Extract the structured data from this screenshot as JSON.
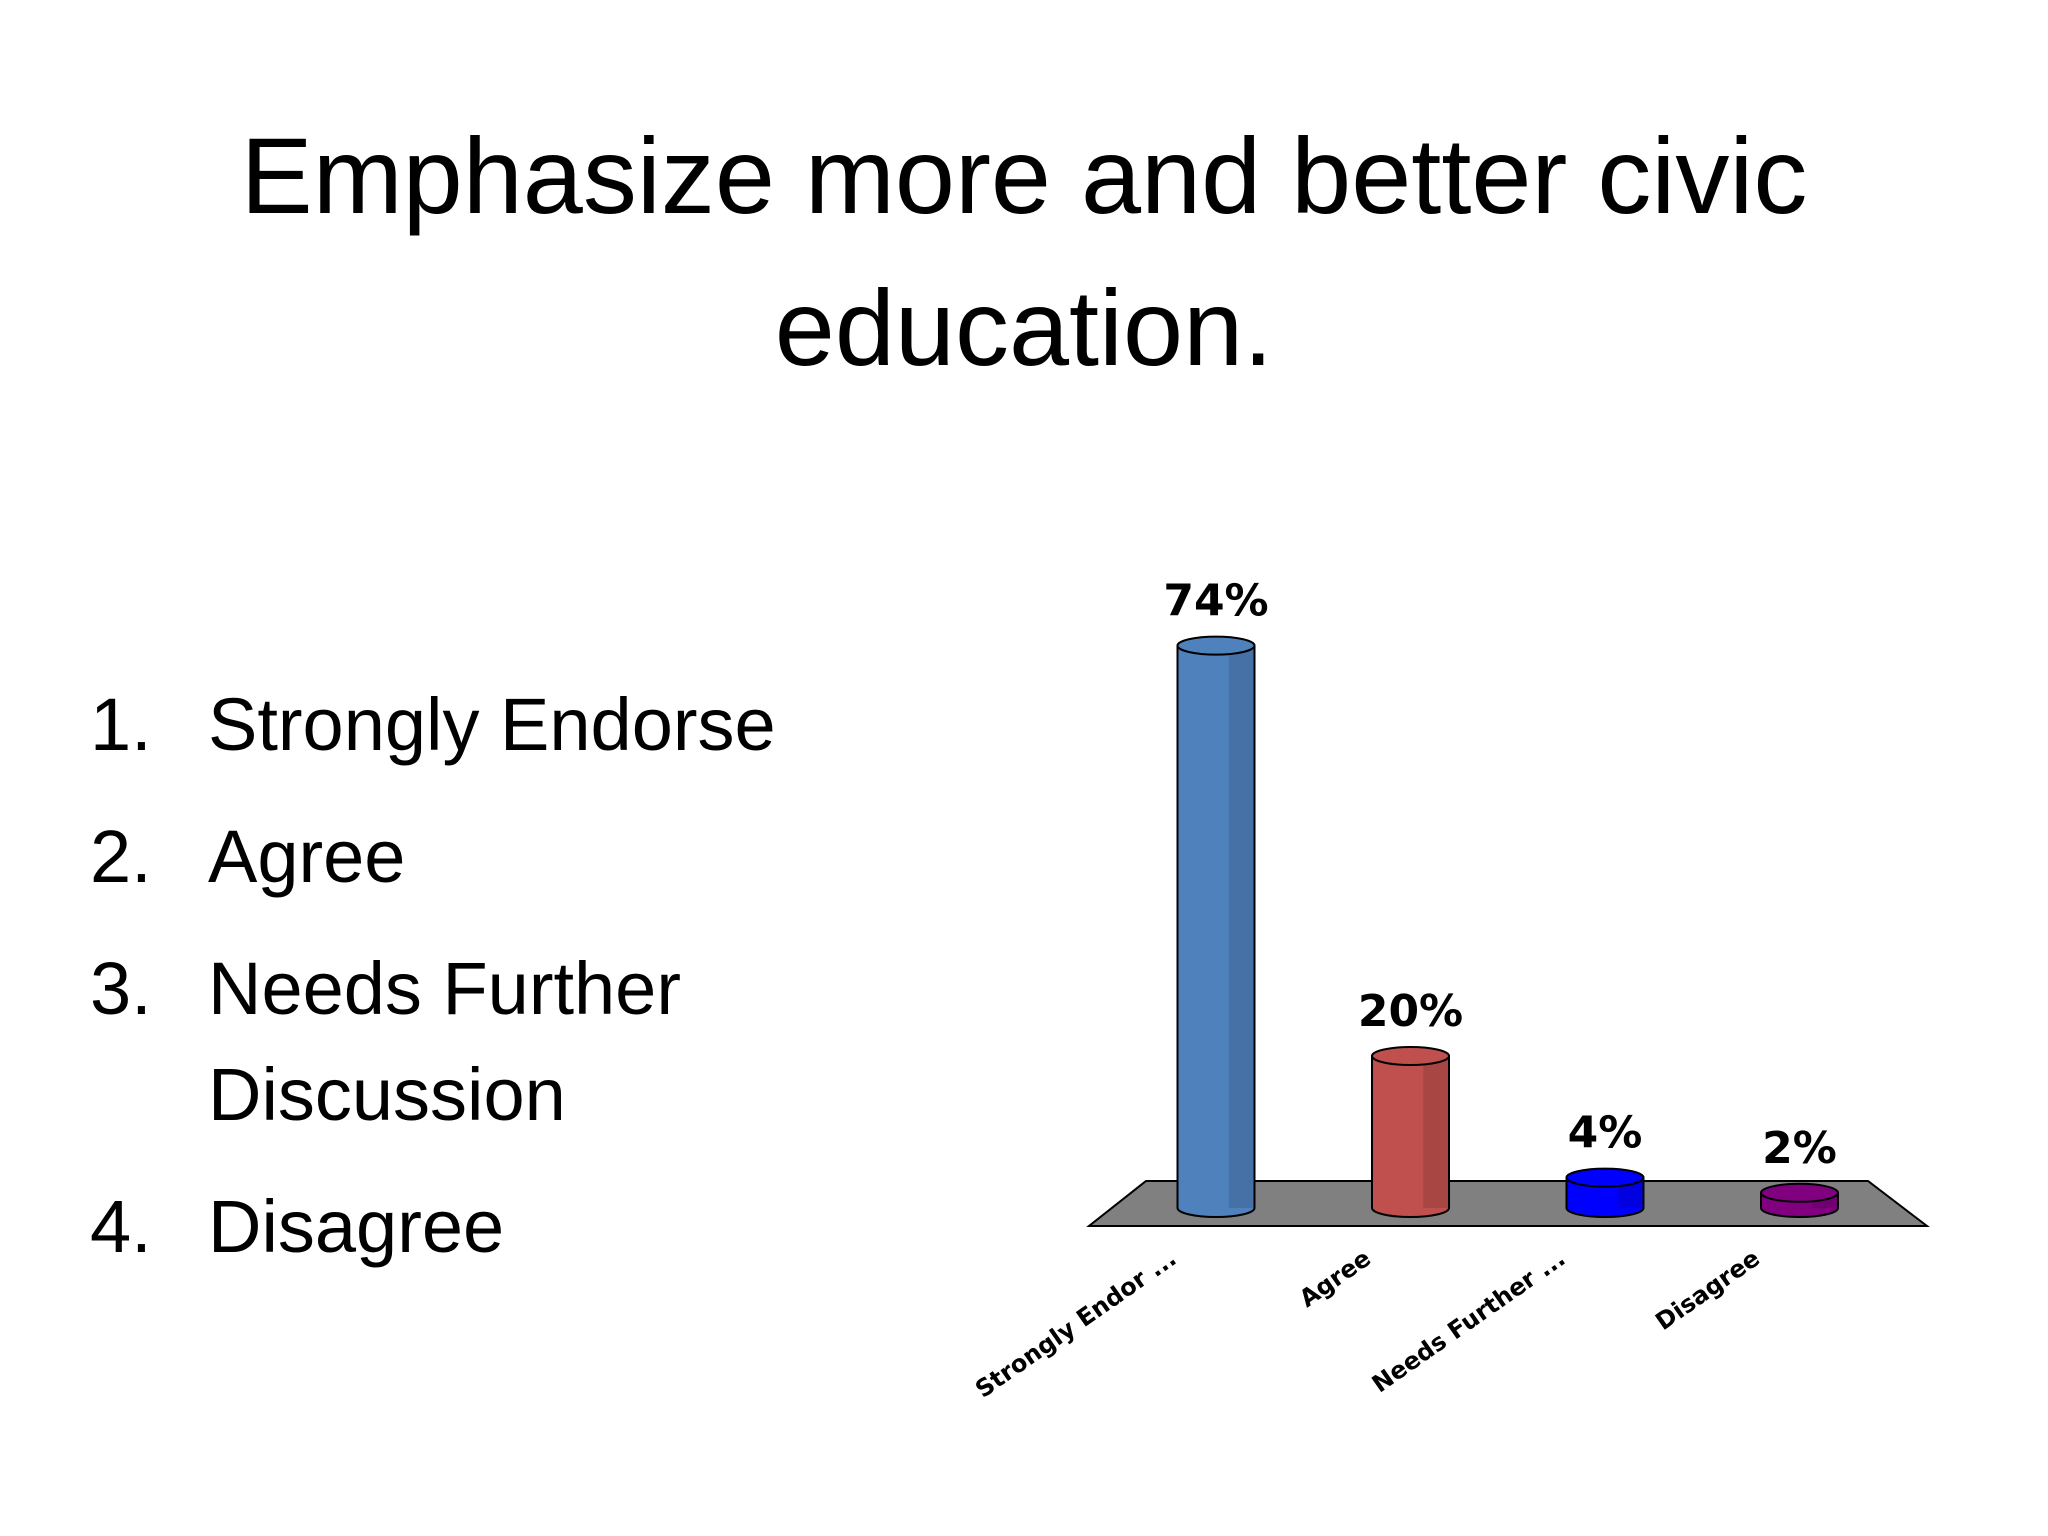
{
  "title": "Emphasize more and better civic education.",
  "list": [
    {
      "number": "1.",
      "text": "Strongly Endorse"
    },
    {
      "number": "2.",
      "text": "Agree"
    },
    {
      "number": "3.",
      "text": "Needs Further Discussion"
    },
    {
      "number": "4.",
      "text": "Disagree"
    }
  ],
  "chart_data": {
    "type": "bar",
    "categories": [
      "Strongly Endor ...",
      "Agree",
      "Needs Further ...",
      "Disagree"
    ],
    "values": [
      74,
      20,
      4,
      2
    ],
    "value_labels": [
      "74%",
      "20%",
      "4%",
      "2%"
    ],
    "colors": [
      "#4f81bd",
      "#c0504d",
      "#0000ff",
      "#800080"
    ]
  }
}
